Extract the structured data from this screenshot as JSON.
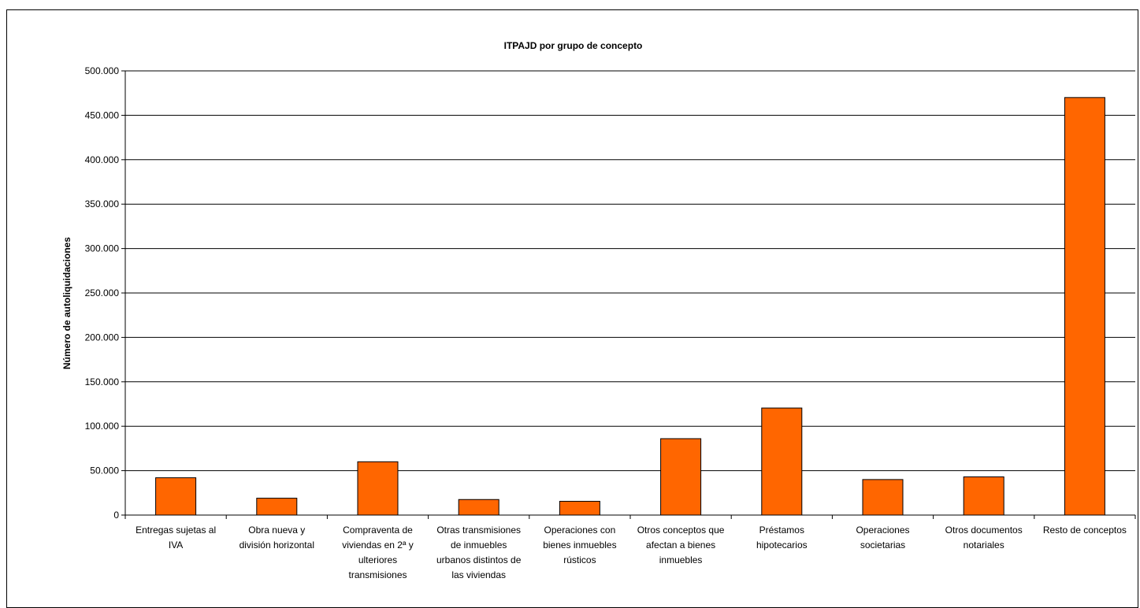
{
  "chart_data": {
    "type": "bar",
    "title": "ITPAJD por grupo de concepto",
    "xlabel": "",
    "ylabel": "Número de autoliquidaciones",
    "ylim": [
      0,
      500000
    ],
    "yticks": [
      "0",
      "50.000",
      "100.000",
      "150.000",
      "200.000",
      "250.000",
      "300.000",
      "350.000",
      "400.000",
      "450.000",
      "500.000"
    ],
    "grid": true,
    "legend": "none",
    "bar_color": "#FF6600",
    "categories": [
      [
        "Entregas sujetas al",
        "IVA"
      ],
      [
        "Obra nueva y",
        "división horizontal"
      ],
      [
        "Compraventa de",
        "viviendas en 2ª y",
        "ulteriores",
        "transmisiones"
      ],
      [
        "Otras transmisiones",
        "de inmuebles",
        "urbanos distintos de",
        "las viviendas"
      ],
      [
        "Operaciones con",
        "bienes inmuebles",
        "rústicos"
      ],
      [
        "Otros conceptos que",
        "afectan a bienes",
        "inmuebles"
      ],
      [
        "Préstamos",
        "hipotecarios"
      ],
      [
        "Operaciones",
        "societarias"
      ],
      [
        "Otros documentos",
        "notariales"
      ],
      [
        "Resto de conceptos"
      ]
    ],
    "values": [
      42000,
      19000,
      60000,
      17500,
      15500,
      86000,
      120500,
      40000,
      43000,
      470000
    ]
  }
}
